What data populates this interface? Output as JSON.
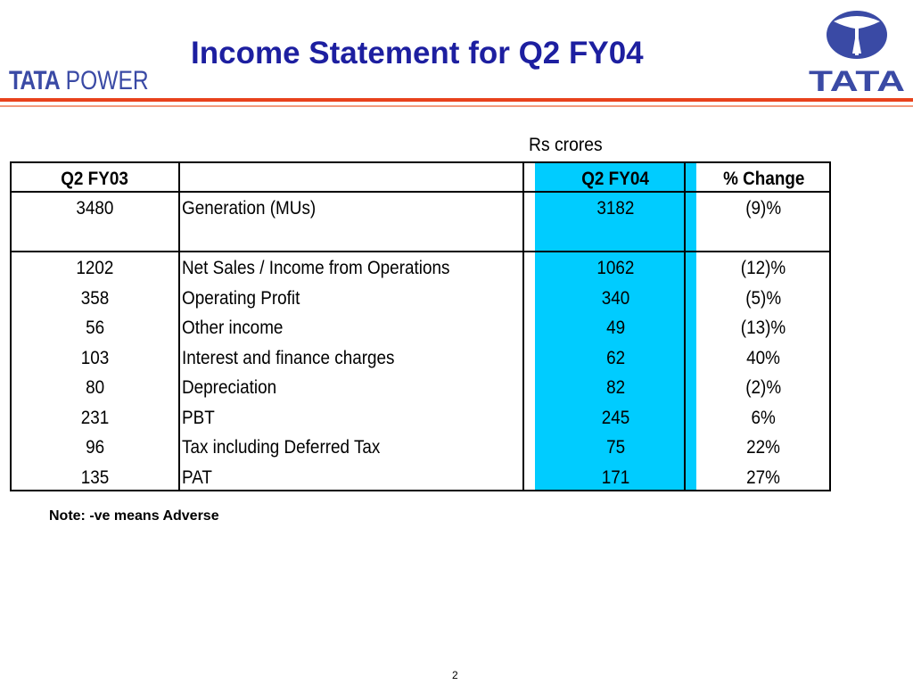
{
  "header": {
    "title": "Income Statement for Q2 FY04",
    "logo_left_bold": "TATA",
    "logo_left_rest": "POWER",
    "logo_right_text": "TATA"
  },
  "colors": {
    "title": "#1d1fa0",
    "brand_blue": "#3a4aa5",
    "rule_red": "#e8421c",
    "highlight_column": "#00ccff"
  },
  "table": {
    "unit_label": "Rs crores",
    "headers": [
      "Q2 FY03",
      "",
      "Q2 FY04",
      "% Change"
    ],
    "rows": [
      [
        "3480",
        "Generation (MUs)",
        "3182",
        "(9)%"
      ],
      [
        "1202",
        "Net Sales / Income from Operations",
        "1062",
        "(12)%"
      ],
      [
        "358",
        "Operating Profit",
        "340",
        "(5)%"
      ],
      [
        "56",
        "Other income",
        "49",
        "(13)%"
      ],
      [
        "103",
        "Interest and finance charges",
        "62",
        "40%"
      ],
      [
        "80",
        "Depreciation",
        "82",
        "(2)%"
      ],
      [
        "231",
        "PBT",
        "245",
        "6%"
      ],
      [
        "96",
        "Tax including Deferred Tax",
        "75",
        "22%"
      ],
      [
        "135",
        "PAT",
        "171",
        "27%"
      ]
    ]
  },
  "footer": {
    "note": "Note: -ve means Adverse",
    "page_number": "2"
  }
}
